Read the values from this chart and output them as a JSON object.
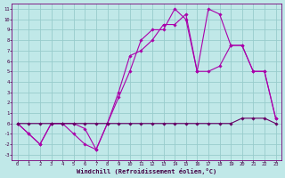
{
  "xlabel": "Windchill (Refroidissement éolien,°C)",
  "xlim": [
    -0.5,
    23.5
  ],
  "ylim": [
    -3.5,
    11.5
  ],
  "xticks": [
    0,
    1,
    2,
    3,
    4,
    5,
    6,
    7,
    8,
    9,
    10,
    11,
    12,
    13,
    14,
    15,
    16,
    17,
    18,
    19,
    20,
    21,
    22,
    23
  ],
  "yticks": [
    -3,
    -2,
    -1,
    0,
    1,
    2,
    3,
    4,
    5,
    6,
    7,
    8,
    9,
    10,
    11
  ],
  "bg_color": "#c0e8e8",
  "grid_color": "#98cccc",
  "line_color": "#aa00aa",
  "line_color_dark": "#660066",
  "line1_x": [
    0,
    1,
    2,
    3,
    4,
    5,
    6,
    7,
    8,
    9,
    10,
    11,
    12,
    13,
    14,
    15,
    16,
    17,
    18,
    19,
    20,
    21,
    22,
    23
  ],
  "line1_y": [
    0,
    -1,
    -2,
    0,
    0,
    -1,
    -2,
    -2.5,
    0,
    3,
    6.5,
    7,
    8,
    9.5,
    9.5,
    10.5,
    5,
    11,
    10.5,
    7.5,
    7.5,
    5,
    5,
    0.5
  ],
  "line2_x": [
    0,
    1,
    2,
    3,
    4,
    5,
    6,
    7,
    8,
    9,
    10,
    11,
    12,
    13,
    14,
    15,
    16,
    17,
    18,
    19,
    20,
    21,
    22,
    23
  ],
  "line2_y": [
    0,
    -1,
    -2,
    0,
    0,
    0,
    -0.5,
    -2.5,
    0,
    2.5,
    5,
    8,
    9,
    9,
    11,
    10,
    5,
    5,
    5.5,
    7.5,
    7.5,
    5,
    5,
    0.5
  ],
  "line3_x": [
    0,
    1,
    2,
    3,
    4,
    5,
    6,
    7,
    8,
    9,
    10,
    11,
    12,
    13,
    14,
    15,
    16,
    17,
    18,
    19,
    20,
    21,
    22,
    23
  ],
  "line3_y": [
    0,
    0,
    0,
    0,
    0,
    0,
    0,
    0,
    0,
    0,
    0,
    0,
    0,
    0,
    0,
    0,
    0,
    0,
    0,
    0,
    0.5,
    0.5,
    0.5,
    0
  ]
}
